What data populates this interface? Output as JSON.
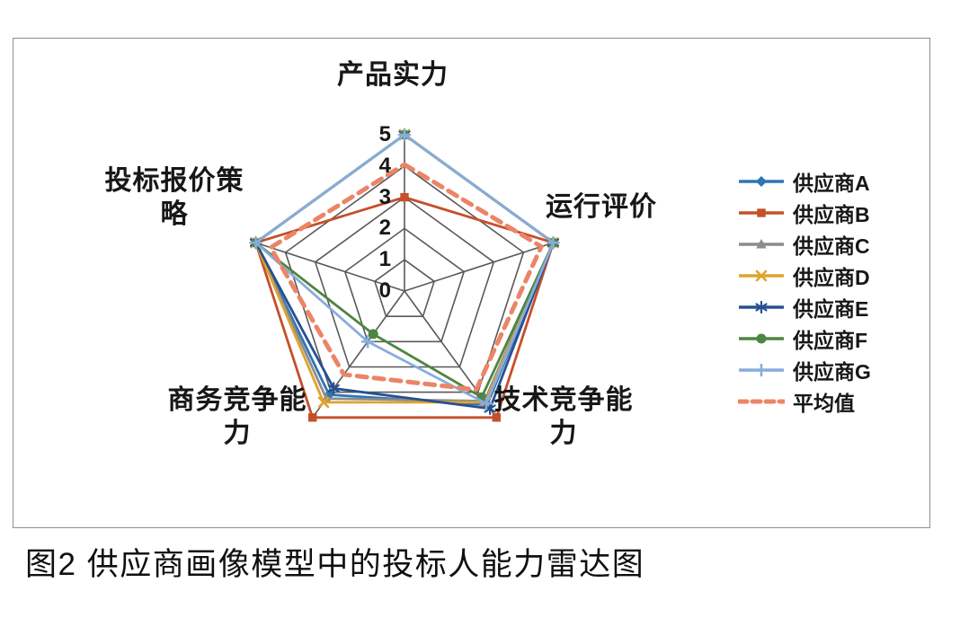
{
  "figure": {
    "caption": "图2  供应商画像模型中的投标人能力雷达图"
  },
  "chart_data": {
    "type": "radar",
    "title": "",
    "categories": [
      "产品实力",
      "运行评价",
      "技术竞争能力",
      "商务竞争能力",
      "投标报价策略"
    ],
    "axis_range": [
      0,
      5
    ],
    "tick_labels": [
      "0",
      "1",
      "2",
      "3",
      "4",
      "5"
    ],
    "grid": true,
    "grid_color": "#595959",
    "legend_position": "right",
    "series": [
      {
        "name": "供应商A",
        "color": "#2E75B6",
        "marker": "diamond",
        "dashed": false,
        "values": [
          5,
          5,
          4.5,
          4.1,
          5
        ]
      },
      {
        "name": "供应商B",
        "color": "#C4502A",
        "marker": "square",
        "dashed": false,
        "values": [
          3,
          5,
          5,
          5,
          5
        ]
      },
      {
        "name": "供应商C",
        "color": "#8C8C8C",
        "marker": "triangle",
        "dashed": false,
        "values": [
          5,
          5,
          4.35,
          4.25,
          5
        ]
      },
      {
        "name": "供应商D",
        "color": "#DFA32E",
        "marker": "x",
        "dashed": false,
        "values": [
          5,
          5,
          4.4,
          4.4,
          5
        ]
      },
      {
        "name": "供应商E",
        "color": "#27508F",
        "marker": "asterisk",
        "dashed": false,
        "values": [
          5,
          5,
          4.65,
          3.85,
          5
        ]
      },
      {
        "name": "供应商F",
        "color": "#4E8542",
        "marker": "circle",
        "dashed": false,
        "values": [
          5,
          5,
          4.2,
          1.7,
          5
        ]
      },
      {
        "name": "供应商G",
        "color": "#88ACDB",
        "marker": "plus",
        "dashed": false,
        "values": [
          5,
          5,
          4.45,
          2,
          5
        ]
      },
      {
        "name": "平均值",
        "color": "#EC8467",
        "marker": "none",
        "dashed": true,
        "values": [
          4.05,
          4.6,
          3.9,
          3.3,
          4.5
        ]
      }
    ]
  }
}
